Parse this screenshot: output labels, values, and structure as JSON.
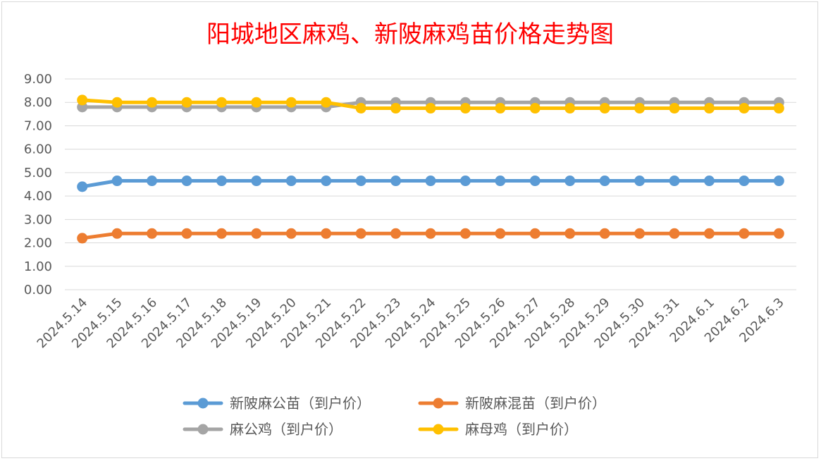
{
  "chart_data": {
    "type": "line",
    "title": "阳城地区麻鸡、新陂麻鸡苗价格走势图",
    "categories": [
      "2024.5.14",
      "2024.5.15",
      "2024.5.16",
      "2024.5.17",
      "2024.5.18",
      "2024.5.19",
      "2024.5.20",
      "2024.5.21",
      "2024.5.22",
      "2024.5.23",
      "2024.5.24",
      "2024.5.25",
      "2024.5.26",
      "2024.5.27",
      "2024.5.28",
      "2024.5.29",
      "2024.5.30",
      "2024.5.31",
      "2024.6.1",
      "2024.6.2",
      "2024.6.3"
    ],
    "ylim": [
      0,
      9
    ],
    "y_ticks": [
      "0.00",
      "1.00",
      "2.00",
      "3.00",
      "4.00",
      "5.00",
      "6.00",
      "7.00",
      "8.00",
      "9.00"
    ],
    "grid": true,
    "legend_position": "bottom",
    "series": [
      {
        "name": "新陂麻公苗（到户价）",
        "color": "#5b9bd5",
        "values": [
          4.4,
          4.65,
          4.65,
          4.65,
          4.65,
          4.65,
          4.65,
          4.65,
          4.65,
          4.65,
          4.65,
          4.65,
          4.65,
          4.65,
          4.65,
          4.65,
          4.65,
          4.65,
          4.65,
          4.65,
          4.65
        ]
      },
      {
        "name": "新陂麻混苗（到户价）",
        "color": "#ed7d31",
        "values": [
          2.2,
          2.4,
          2.4,
          2.4,
          2.4,
          2.4,
          2.4,
          2.4,
          2.4,
          2.4,
          2.4,
          2.4,
          2.4,
          2.4,
          2.4,
          2.4,
          2.4,
          2.4,
          2.4,
          2.4,
          2.4
        ]
      },
      {
        "name": "麻公鸡（到户价）",
        "color": "#a5a5a5",
        "values": [
          7.8,
          7.8,
          7.8,
          7.8,
          7.8,
          7.8,
          7.8,
          7.8,
          8.0,
          8.0,
          8.0,
          8.0,
          8.0,
          8.0,
          8.0,
          8.0,
          8.0,
          8.0,
          8.0,
          8.0,
          8.0
        ]
      },
      {
        "name": "麻母鸡（到户价）",
        "color": "#ffc000",
        "values": [
          8.1,
          8.0,
          8.0,
          8.0,
          8.0,
          8.0,
          8.0,
          8.0,
          7.75,
          7.75,
          7.75,
          7.75,
          7.75,
          7.75,
          7.75,
          7.75,
          7.75,
          7.75,
          7.75,
          7.75,
          7.75
        ]
      }
    ]
  }
}
